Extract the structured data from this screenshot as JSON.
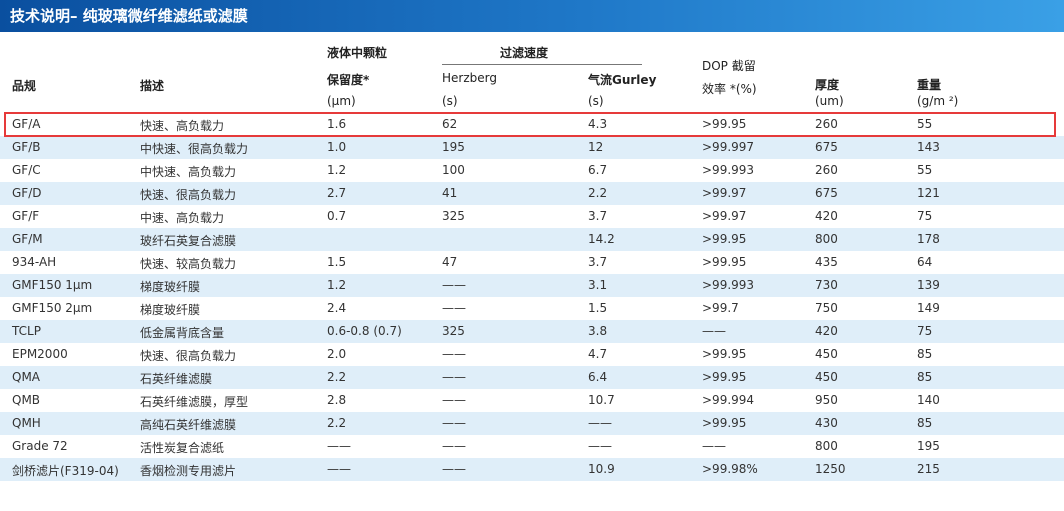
{
  "title": "技术说明– 纯玻璃微纤维滤纸或滤膜",
  "header": {
    "grade": "品规",
    "description": "描述",
    "retention_line1": "液体中颗粒",
    "retention_line2": "保留度*",
    "retention_unit": "(μm)",
    "filtration_speed": "过滤速度",
    "herzberg": "Herzberg",
    "herzberg_unit": "(s)",
    "gurley": "气流Gurley",
    "gurley_unit": "(s)",
    "dop_line1": "DOP 截留",
    "dop_line2": "效率 *(%)",
    "thickness": "厚度",
    "thickness_unit": "(um)",
    "weight": "重量",
    "weight_unit": "(g/m ²)"
  },
  "rows": [
    {
      "grade": "GF/A",
      "desc": "快速、高负载力",
      "retention": "1.6",
      "herzberg": "62",
      "gurley": "4.3",
      "dop": ">99.95",
      "thickness": "260",
      "weight": "55"
    },
    {
      "grade": "GF/B",
      "desc": "中快速、很高负载力",
      "retention": "1.0",
      "herzberg": "195",
      "gurley": "12",
      "dop": ">99.997",
      "thickness": "675",
      "weight": "143"
    },
    {
      "grade": "GF/C",
      "desc": "中快速、高负载力",
      "retention": "1.2",
      "herzberg": "100",
      "gurley": "6.7",
      "dop": ">99.993",
      "thickness": "260",
      "weight": "55"
    },
    {
      "grade": "GF/D",
      "desc": "快速、很高负载力",
      "retention": "2.7",
      "herzberg": "41",
      "gurley": "2.2",
      "dop": ">99.97",
      "thickness": "675",
      "weight": "121"
    },
    {
      "grade": "GF/F",
      "desc": "中速、高负载力",
      "retention": "0.7",
      "herzberg": "325",
      "gurley": "3.7",
      "dop": ">99.97",
      "thickness": "420",
      "weight": "75"
    },
    {
      "grade": "GF/M",
      "desc": "玻纤石英复合滤膜",
      "retention": "",
      "herzberg": "",
      "gurley": "14.2",
      "dop": ">99.95",
      "thickness": "800",
      "weight": "178"
    },
    {
      "grade": "934-AH",
      "desc": "快速、较高负载力",
      "retention": "1.5",
      "herzberg": "47",
      "gurley": "3.7",
      "dop": ">99.95",
      "thickness": "435",
      "weight": "64"
    },
    {
      "grade": "GMF150 1μm",
      "desc": "梯度玻纤膜",
      "retention": "1.2",
      "herzberg": "——",
      "gurley": "3.1",
      "dop": ">99.993",
      "thickness": "730",
      "weight": "139"
    },
    {
      "grade": "GMF150 2μm",
      "desc": "梯度玻纤膜",
      "retention": "2.4",
      "herzberg": "——",
      "gurley": "1.5",
      "dop": ">99.7",
      "thickness": "750",
      "weight": "149"
    },
    {
      "grade": "TCLP",
      "desc": "低金属背底含量",
      "retention": "0.6-0.8 (0.7)",
      "herzberg": "325",
      "gurley": "3.8",
      "dop": "——",
      "thickness": "420",
      "weight": "75"
    },
    {
      "grade": "EPM2000",
      "desc": "快速、很高负载力",
      "retention": "2.0",
      "herzberg": "——",
      "gurley": "4.7",
      "dop": ">99.95",
      "thickness": "450",
      "weight": "85"
    },
    {
      "grade": "QMA",
      "desc": "石英纤维滤膜",
      "retention": "2.2",
      "herzberg": "——",
      "gurley": "6.4",
      "dop": ">99.95",
      "thickness": "450",
      "weight": "85"
    },
    {
      "grade": "QMB",
      "desc": "石英纤维滤膜，厚型",
      "retention": "2.8",
      "herzberg": "——",
      "gurley": "10.7",
      "dop": ">99.994",
      "thickness": "950",
      "weight": "140"
    },
    {
      "grade": "QMH",
      "desc": "高纯石英纤维滤膜",
      "retention": "2.2",
      "herzberg": "——",
      "gurley": "——",
      "dop": ">99.95",
      "thickness": "430",
      "weight": "85"
    },
    {
      "grade": "Grade 72",
      "desc": "活性炭复合滤纸",
      "retention": "——",
      "herzberg": "——",
      "gurley": "——",
      "dop": "——",
      "thickness": "800",
      "weight": "195"
    },
    {
      "grade": "剑桥滤片(F319-04)",
      "desc": "香烟检测专用滤片",
      "retention": "——",
      "herzberg": "——",
      "gurley": "10.9",
      "dop": ">99.98%",
      "thickness": "1250",
      "weight": "215"
    }
  ]
}
